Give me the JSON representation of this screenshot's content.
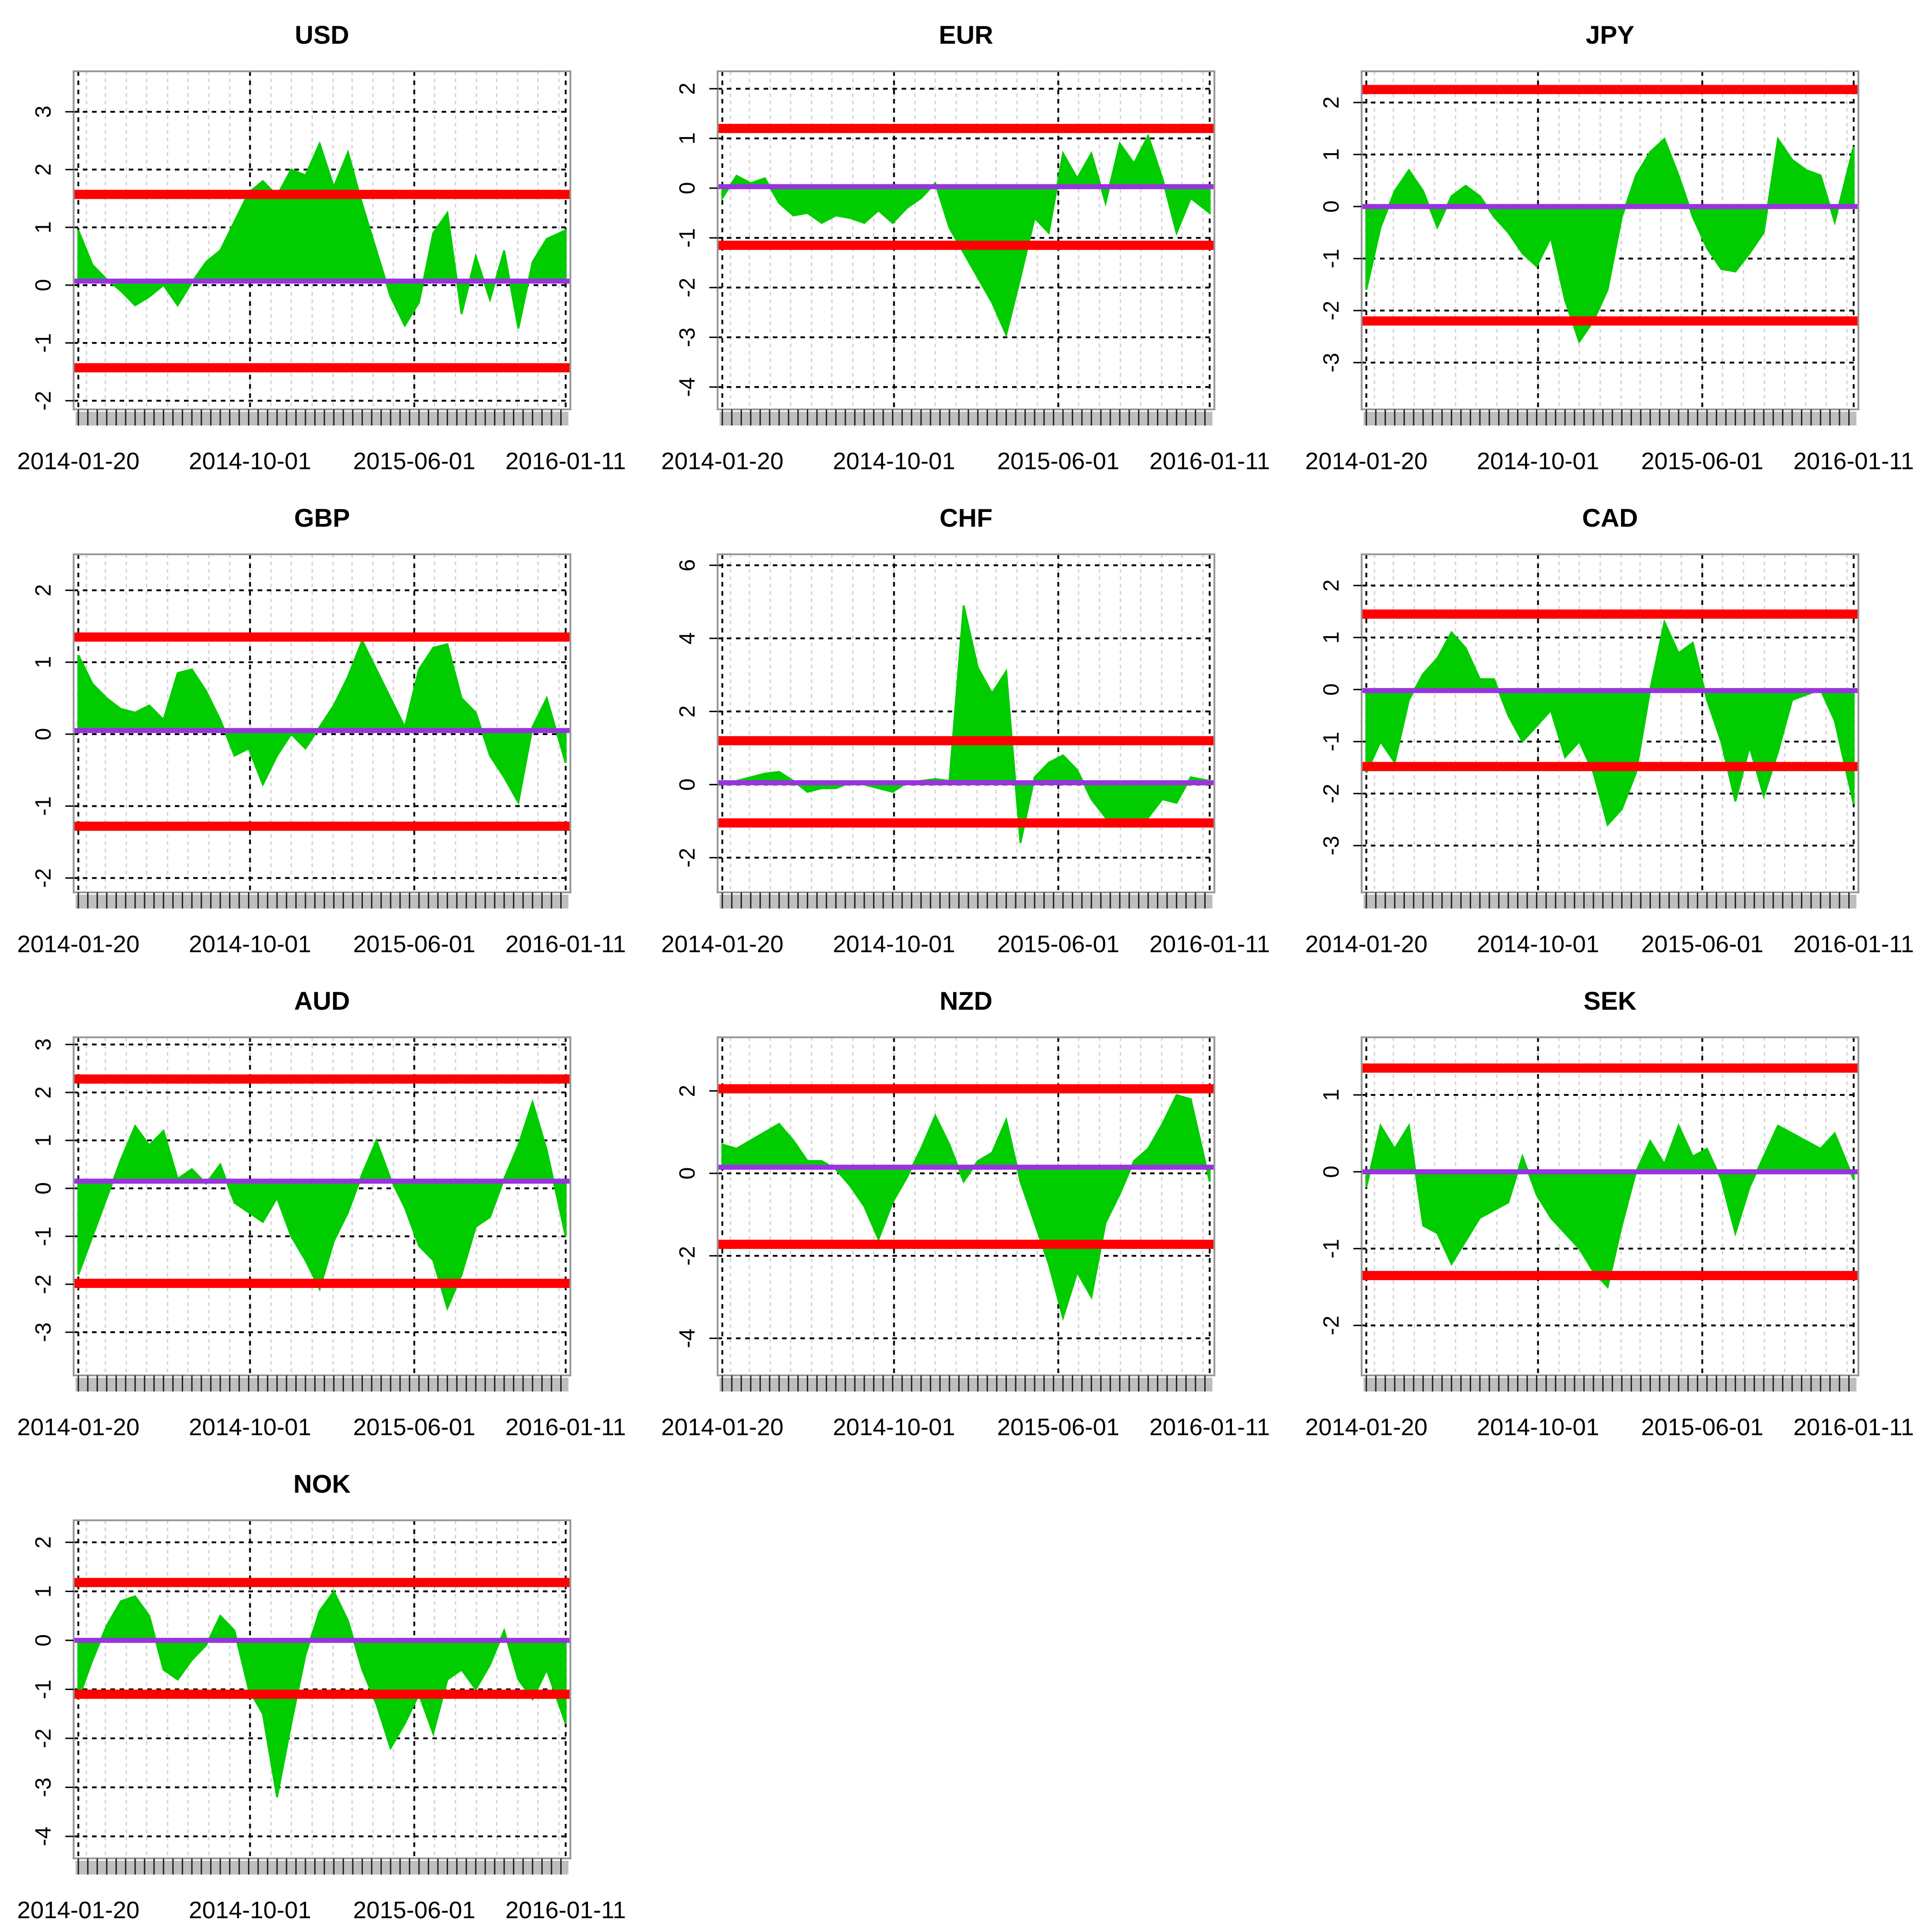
{
  "figure": {
    "background": "#ffffff",
    "colors": {
      "fill": "#00cc00",
      "threshold": "#ff0000",
      "mean": "#9933dd",
      "grid": "#000000",
      "minor_grid": "#d3d3d3",
      "rug": "#bebebe",
      "frame": "#999999"
    }
  },
  "chart_data": [
    {
      "type": "area",
      "title": "USD",
      "xlabel": "",
      "ylabel": "",
      "x_tick_labels": [
        "2014-01-20",
        "2014-10-01",
        "2015-06-01",
        "2016-01-11"
      ],
      "x_ticks": [
        "2014-01-20",
        "2014-10-01",
        "2015-06-01",
        "2016-01-11"
      ],
      "xlim": [
        "2014-01-13",
        "2016-01-18"
      ],
      "y_ticks": [
        -2,
        -1,
        0,
        1,
        2,
        3
      ],
      "ylim": [
        -2.15,
        3.7
      ],
      "grid": true,
      "mean": 0.07,
      "upper_threshold": 1.57,
      "lower_threshold": -1.43,
      "x": [
        "2014-01-20",
        "2014-02-10",
        "2014-03-03",
        "2014-03-24",
        "2014-04-14",
        "2014-05-05",
        "2014-05-26",
        "2014-06-16",
        "2014-07-07",
        "2014-07-28",
        "2014-08-18",
        "2014-09-08",
        "2014-09-29",
        "2014-10-20",
        "2014-11-10",
        "2014-12-01",
        "2014-12-22",
        "2015-01-12",
        "2015-02-02",
        "2015-02-23",
        "2015-03-16",
        "2015-04-06",
        "2015-04-27",
        "2015-05-18",
        "2015-06-08",
        "2015-06-29",
        "2015-07-20",
        "2015-08-10",
        "2015-08-31",
        "2015-09-21",
        "2015-10-12",
        "2015-11-02",
        "2015-11-23",
        "2015-12-14",
        "2016-01-11"
      ],
      "values": [
        0.95,
        0.35,
        0.1,
        -0.1,
        -0.35,
        -0.2,
        0.0,
        -0.35,
        0.05,
        0.4,
        0.6,
        1.1,
        1.6,
        1.8,
        1.55,
        2.0,
        1.9,
        2.45,
        1.7,
        2.3,
        1.4,
        0.6,
        -0.2,
        -0.7,
        -0.3,
        0.9,
        1.25,
        -0.5,
        0.5,
        -0.25,
        0.6,
        -0.75,
        0.4,
        0.8,
        0.95
      ]
    },
    {
      "type": "area",
      "title": "EUR",
      "xlabel": "",
      "ylabel": "",
      "x_tick_labels": [
        "2014-01-20",
        "2014-10-01",
        "2015-06-01",
        "2016-01-11"
      ],
      "x_ticks": [
        "2014-01-20",
        "2014-10-01",
        "2015-06-01",
        "2016-01-11"
      ],
      "xlim": [
        "2014-01-13",
        "2016-01-18"
      ],
      "y_ticks": [
        -4,
        2,
        1,
        0,
        -1,
        -2,
        -3
      ],
      "ylim": [
        -4.45,
        2.35
      ],
      "grid": true,
      "mean": 0.03,
      "upper_threshold": 1.2,
      "lower_threshold": -1.15,
      "x": [
        "2014-01-20",
        "2014-02-10",
        "2014-03-03",
        "2014-03-24",
        "2014-04-14",
        "2014-05-05",
        "2014-05-26",
        "2014-06-16",
        "2014-07-07",
        "2014-07-28",
        "2014-08-18",
        "2014-09-08",
        "2014-09-29",
        "2014-10-20",
        "2014-11-10",
        "2014-12-01",
        "2014-12-22",
        "2015-01-12",
        "2015-02-02",
        "2015-02-23",
        "2015-03-16",
        "2015-04-06",
        "2015-04-27",
        "2015-05-18",
        "2015-06-08",
        "2015-06-29",
        "2015-07-20",
        "2015-08-10",
        "2015-08-31",
        "2015-09-21",
        "2015-10-12",
        "2015-11-02",
        "2015-11-23",
        "2015-12-14",
        "2016-01-11"
      ],
      "values": [
        -0.2,
        0.25,
        0.1,
        0.2,
        -0.3,
        -0.55,
        -0.5,
        -0.7,
        -0.55,
        -0.6,
        -0.7,
        -0.45,
        -0.7,
        -0.4,
        -0.2,
        0.1,
        -0.8,
        -1.3,
        -1.8,
        -2.3,
        -2.95,
        -1.8,
        -0.6,
        -0.9,
        0.7,
        0.2,
        0.7,
        -0.3,
        0.9,
        0.5,
        1.05,
        0.2,
        -0.9,
        -0.2,
        -0.5
      ]
    },
    {
      "type": "area",
      "title": "JPY",
      "xlabel": "",
      "ylabel": "",
      "x_tick_labels": [
        "2014-01-20",
        "2014-10-01",
        "2015-06-01",
        "2016-01-11"
      ],
      "x_ticks": [
        "2014-01-20",
        "2014-10-01",
        "2015-06-01",
        "2016-01-11"
      ],
      "xlim": [
        "2014-01-13",
        "2016-01-18"
      ],
      "y_ticks": [
        -3,
        -2,
        -1,
        0,
        1,
        2
      ],
      "ylim": [
        -3.9,
        2.6
      ],
      "grid": true,
      "mean": 0.0,
      "upper_threshold": 2.25,
      "lower_threshold": -2.2,
      "x": [
        "2014-01-20",
        "2014-02-10",
        "2014-03-03",
        "2014-03-24",
        "2014-04-14",
        "2014-05-05",
        "2014-05-26",
        "2014-06-16",
        "2014-07-07",
        "2014-07-28",
        "2014-08-18",
        "2014-09-08",
        "2014-09-29",
        "2014-10-20",
        "2014-11-10",
        "2014-12-01",
        "2014-12-22",
        "2015-01-12",
        "2015-02-02",
        "2015-02-23",
        "2015-03-16",
        "2015-04-06",
        "2015-04-27",
        "2015-05-18",
        "2015-06-08",
        "2015-06-29",
        "2015-07-20",
        "2015-08-10",
        "2015-08-31",
        "2015-09-21",
        "2015-10-12",
        "2015-11-02",
        "2015-11-23",
        "2015-12-14",
        "2016-01-11"
      ],
      "values": [
        -1.6,
        -0.4,
        0.3,
        0.7,
        0.3,
        -0.4,
        0.2,
        0.4,
        0.2,
        -0.2,
        -0.5,
        -0.9,
        -1.15,
        -0.6,
        -1.8,
        -2.6,
        -2.2,
        -1.6,
        -0.2,
        0.6,
        1.05,
        1.3,
        0.6,
        -0.2,
        -0.8,
        -1.2,
        -1.25,
        -0.9,
        -0.5,
        1.3,
        0.9,
        0.7,
        0.6,
        -0.3,
        1.15
      ]
    },
    {
      "type": "area",
      "title": "GBP",
      "xlabel": "",
      "ylabel": "",
      "x_tick_labels": [
        "2014-01-20",
        "2014-10-01",
        "2015-06-01",
        "2016-01-11"
      ],
      "x_ticks": [
        "2014-01-20",
        "2014-10-01",
        "2015-06-01",
        "2016-01-11"
      ],
      "xlim": [
        "2014-01-13",
        "2016-01-18"
      ],
      "y_ticks": [
        -2,
        -1,
        0,
        1,
        2
      ],
      "ylim": [
        -2.2,
        2.5
      ],
      "grid": true,
      "mean": 0.05,
      "upper_threshold": 1.35,
      "lower_threshold": -1.28,
      "x": [
        "2014-01-20",
        "2014-02-10",
        "2014-03-03",
        "2014-03-24",
        "2014-04-14",
        "2014-05-05",
        "2014-05-26",
        "2014-06-16",
        "2014-07-07",
        "2014-07-28",
        "2014-08-18",
        "2014-09-08",
        "2014-09-29",
        "2014-10-20",
        "2014-11-10",
        "2014-12-01",
        "2014-12-22",
        "2015-01-12",
        "2015-02-02",
        "2015-02-23",
        "2015-03-16",
        "2015-04-06",
        "2015-04-27",
        "2015-05-18",
        "2015-06-08",
        "2015-06-29",
        "2015-07-20",
        "2015-08-10",
        "2015-08-31",
        "2015-09-21",
        "2015-10-12",
        "2015-11-02",
        "2015-11-23",
        "2015-12-14",
        "2016-01-11"
      ],
      "values": [
        1.1,
        0.7,
        0.5,
        0.35,
        0.3,
        0.4,
        0.2,
        0.85,
        0.9,
        0.6,
        0.2,
        -0.3,
        -0.2,
        -0.7,
        -0.3,
        0.0,
        -0.2,
        0.1,
        0.4,
        0.8,
        1.3,
        0.9,
        0.5,
        0.1,
        0.9,
        1.2,
        1.25,
        0.5,
        0.3,
        -0.3,
        -0.6,
        -0.95,
        0.1,
        0.5,
        -0.4
      ]
    },
    {
      "type": "area",
      "title": "CHF",
      "xlabel": "",
      "ylabel": "",
      "x_tick_labels": [
        "2014-01-20",
        "2014-10-01",
        "2015-06-01",
        "2016-01-11"
      ],
      "x_ticks": [
        "2014-01-20",
        "2014-10-01",
        "2015-06-01",
        "2016-01-11"
      ],
      "xlim": [
        "2014-01-13",
        "2016-01-18"
      ],
      "y_ticks": [
        -2,
        0,
        2,
        4,
        6
      ],
      "ylim": [
        -2.95,
        6.3
      ],
      "grid": true,
      "mean": 0.05,
      "upper_threshold": 1.2,
      "lower_threshold": -1.05,
      "x": [
        "2014-01-20",
        "2014-02-10",
        "2014-03-03",
        "2014-03-24",
        "2014-04-14",
        "2014-05-05",
        "2014-05-26",
        "2014-06-16",
        "2014-07-07",
        "2014-07-28",
        "2014-08-18",
        "2014-09-08",
        "2014-09-29",
        "2014-10-20",
        "2014-11-10",
        "2014-12-01",
        "2014-12-22",
        "2015-01-12",
        "2015-02-02",
        "2015-02-23",
        "2015-03-16",
        "2015-04-06",
        "2015-04-27",
        "2015-05-18",
        "2015-06-08",
        "2015-06-29",
        "2015-07-20",
        "2015-08-10",
        "2015-08-31",
        "2015-09-21",
        "2015-10-12",
        "2015-11-02",
        "2015-11-23",
        "2015-12-14",
        "2016-01-11"
      ],
      "values": [
        0.0,
        0.1,
        0.2,
        0.3,
        0.35,
        0.1,
        -0.2,
        -0.1,
        -0.1,
        0.05,
        0.0,
        -0.1,
        -0.2,
        0.05,
        0.1,
        0.15,
        0.1,
        4.9,
        3.2,
        2.5,
        3.1,
        -1.6,
        0.2,
        0.6,
        0.8,
        0.4,
        -0.4,
        -0.9,
        -1.15,
        -1.1,
        -0.9,
        -0.4,
        -0.5,
        0.2,
        0.1
      ]
    },
    {
      "type": "area",
      "title": "CAD",
      "xlabel": "",
      "ylabel": "",
      "x_tick_labels": [
        "2014-01-20",
        "2014-10-01",
        "2015-06-01",
        "2016-01-11"
      ],
      "x_ticks": [
        "2014-01-20",
        "2014-10-01",
        "2015-06-01",
        "2016-01-11"
      ],
      "xlim": [
        "2014-01-13",
        "2016-01-18"
      ],
      "y_ticks": [
        -3,
        -2,
        -1,
        0,
        1,
        2
      ],
      "ylim": [
        -3.9,
        2.6
      ],
      "grid": true,
      "mean": -0.02,
      "upper_threshold": 1.45,
      "lower_threshold": -1.48,
      "x": [
        "2014-01-20",
        "2014-02-10",
        "2014-03-03",
        "2014-03-24",
        "2014-04-14",
        "2014-05-05",
        "2014-05-26",
        "2014-06-16",
        "2014-07-07",
        "2014-07-28",
        "2014-08-18",
        "2014-09-08",
        "2014-09-29",
        "2014-10-20",
        "2014-11-10",
        "2014-12-01",
        "2014-12-22",
        "2015-01-12",
        "2015-02-02",
        "2015-02-23",
        "2015-03-16",
        "2015-04-06",
        "2015-04-27",
        "2015-05-18",
        "2015-06-08",
        "2015-06-29",
        "2015-07-20",
        "2015-08-10",
        "2015-08-31",
        "2015-09-21",
        "2015-10-12",
        "2015-11-02",
        "2015-11-23",
        "2015-12-14",
        "2016-01-11"
      ],
      "values": [
        -1.6,
        -1.0,
        -1.4,
        -0.2,
        0.3,
        0.6,
        1.1,
        0.8,
        0.2,
        0.2,
        -0.5,
        -1.0,
        -0.7,
        -0.4,
        -1.3,
        -1.0,
        -1.6,
        -2.6,
        -2.3,
        -1.6,
        0.0,
        1.3,
        0.7,
        0.9,
        -0.2,
        -1.0,
        -2.15,
        -1.1,
        -2.05,
        -1.2,
        -0.2,
        -0.1,
        0.0,
        -0.6,
        -2.2
      ]
    },
    {
      "type": "area",
      "title": "AUD",
      "xlabel": "",
      "ylabel": "",
      "x_tick_labels": [
        "2014-01-20",
        "2014-10-01",
        "2015-06-01",
        "2016-01-11"
      ],
      "x_ticks": [
        "2014-01-20",
        "2014-10-01",
        "2015-06-01",
        "2016-01-11"
      ],
      "xlim": [
        "2014-01-13",
        "2016-01-18"
      ],
      "y_ticks": [
        -3,
        -2,
        -1,
        0,
        1,
        2,
        3
      ],
      "ylim": [
        -3.9,
        3.15
      ],
      "grid": true,
      "mean": 0.15,
      "upper_threshold": 2.28,
      "lower_threshold": -1.98,
      "x": [
        "2014-01-20",
        "2014-02-10",
        "2014-03-03",
        "2014-03-24",
        "2014-04-14",
        "2014-05-05",
        "2014-05-26",
        "2014-06-16",
        "2014-07-07",
        "2014-07-28",
        "2014-08-18",
        "2014-09-08",
        "2014-09-29",
        "2014-10-20",
        "2014-11-10",
        "2014-12-01",
        "2014-12-22",
        "2015-01-12",
        "2015-02-02",
        "2015-02-23",
        "2015-03-16",
        "2015-04-06",
        "2015-04-27",
        "2015-05-18",
        "2015-06-08",
        "2015-06-29",
        "2015-07-20",
        "2015-08-10",
        "2015-08-31",
        "2015-09-21",
        "2015-10-12",
        "2015-11-02",
        "2015-11-23",
        "2015-12-14",
        "2016-01-11"
      ],
      "values": [
        -1.8,
        -1.0,
        -0.2,
        0.6,
        1.3,
        0.9,
        1.2,
        0.2,
        0.4,
        0.1,
        0.5,
        -0.3,
        -0.5,
        -0.7,
        -0.2,
        -1.0,
        -1.5,
        -2.1,
        -1.1,
        -0.5,
        0.3,
        1.0,
        0.2,
        -0.4,
        -1.2,
        -1.5,
        -2.5,
        -1.8,
        -0.8,
        -0.6,
        0.2,
        0.9,
        1.8,
        0.8,
        -1.0
      ]
    },
    {
      "type": "area",
      "title": "NZD",
      "xlabel": "",
      "ylabel": "",
      "x_tick_labels": [
        "2014-01-20",
        "2014-10-01",
        "2015-06-01",
        "2016-01-11"
      ],
      "x_ticks": [
        "2014-01-20",
        "2014-10-01",
        "2015-06-01",
        "2016-01-11"
      ],
      "xlim": [
        "2014-01-13",
        "2016-01-18"
      ],
      "y_ticks": [
        -4,
        -2,
        0,
        2
      ],
      "ylim": [
        -4.9,
        3.3
      ],
      "grid": true,
      "mean": 0.15,
      "upper_threshold": 2.05,
      "lower_threshold": -1.72,
      "x": [
        "2014-01-20",
        "2014-02-10",
        "2014-03-03",
        "2014-03-24",
        "2014-04-14",
        "2014-05-05",
        "2014-05-26",
        "2014-06-16",
        "2014-07-07",
        "2014-07-28",
        "2014-08-18",
        "2014-09-08",
        "2014-09-29",
        "2014-10-20",
        "2014-11-10",
        "2014-12-01",
        "2014-12-22",
        "2015-01-12",
        "2015-02-02",
        "2015-02-23",
        "2015-03-16",
        "2015-04-06",
        "2015-04-27",
        "2015-05-18",
        "2015-06-08",
        "2015-06-29",
        "2015-07-20",
        "2015-08-10",
        "2015-08-31",
        "2015-09-21",
        "2015-10-12",
        "2015-11-02",
        "2015-11-23",
        "2015-12-14",
        "2016-01-11"
      ],
      "values": [
        0.7,
        0.6,
        0.8,
        1.0,
        1.2,
        0.8,
        0.3,
        0.3,
        0.1,
        -0.3,
        -0.8,
        -1.6,
        -0.7,
        -0.1,
        0.6,
        1.4,
        0.7,
        -0.2,
        0.3,
        0.5,
        1.3,
        -0.2,
        -1.2,
        -2.2,
        -3.5,
        -2.4,
        -3.0,
        -1.2,
        -0.5,
        0.3,
        0.6,
        1.2,
        1.9,
        1.8,
        -0.2
      ]
    },
    {
      "type": "area",
      "title": "SEK",
      "xlabel": "",
      "ylabel": "",
      "x_tick_labels": [
        "2014-01-20",
        "2014-10-01",
        "2015-06-01",
        "2016-01-11"
      ],
      "x_ticks": [
        "2014-01-20",
        "2014-10-01",
        "2015-06-01",
        "2016-01-11"
      ],
      "xlim": [
        "2014-01-13",
        "2016-01-18"
      ],
      "y_ticks": [
        -2,
        -1,
        0,
        1
      ],
      "ylim": [
        -2.65,
        1.75
      ],
      "grid": true,
      "mean": 0.0,
      "upper_threshold": 1.35,
      "lower_threshold": -1.35,
      "x": [
        "2014-01-20",
        "2014-02-10",
        "2014-03-03",
        "2014-03-24",
        "2014-04-14",
        "2014-05-05",
        "2014-05-26",
        "2014-06-16",
        "2014-07-07",
        "2014-07-28",
        "2014-08-18",
        "2014-09-08",
        "2014-09-29",
        "2014-10-20",
        "2014-11-10",
        "2014-12-01",
        "2014-12-22",
        "2015-01-12",
        "2015-02-02",
        "2015-02-23",
        "2015-03-16",
        "2015-04-06",
        "2015-04-27",
        "2015-05-18",
        "2015-06-08",
        "2015-06-29",
        "2015-07-20",
        "2015-08-10",
        "2015-08-31",
        "2015-09-21",
        "2015-10-12",
        "2015-11-02",
        "2015-11-23",
        "2015-12-14",
        "2016-01-11"
      ],
      "values": [
        -0.2,
        0.6,
        0.3,
        0.6,
        -0.7,
        -0.8,
        -1.2,
        -0.9,
        -0.6,
        -0.5,
        -0.4,
        0.2,
        -0.3,
        -0.6,
        -0.8,
        -1.0,
        -1.3,
        -1.5,
        -0.7,
        0.0,
        0.4,
        0.1,
        0.6,
        0.2,
        0.3,
        -0.1,
        -0.8,
        -0.2,
        0.2,
        0.6,
        0.5,
        0.4,
        0.3,
        0.5,
        -0.1
      ]
    },
    {
      "type": "area",
      "title": "NOK",
      "xlabel": "",
      "ylabel": "",
      "x_tick_labels": [
        "2014-01-20",
        "2014-10-01",
        "2015-06-01",
        "2016-01-11"
      ],
      "x_ticks": [
        "2014-01-20",
        "2014-10-01",
        "2015-06-01",
        "2016-01-11"
      ],
      "xlim": [
        "2014-01-13",
        "2016-01-18"
      ],
      "y_ticks": [
        -4,
        -3,
        -2,
        -1,
        0,
        1,
        2
      ],
      "ylim": [
        -4.45,
        2.45
      ],
      "grid": true,
      "mean": 0.0,
      "upper_threshold": 1.18,
      "lower_threshold": -1.1,
      "x": [
        "2014-01-20",
        "2014-02-10",
        "2014-03-03",
        "2014-03-24",
        "2014-04-14",
        "2014-05-05",
        "2014-05-26",
        "2014-06-16",
        "2014-07-07",
        "2014-07-28",
        "2014-08-18",
        "2014-09-08",
        "2014-09-29",
        "2014-10-20",
        "2014-11-10",
        "2014-12-01",
        "2014-12-22",
        "2015-01-12",
        "2015-02-02",
        "2015-02-23",
        "2015-03-16",
        "2015-04-06",
        "2015-04-27",
        "2015-05-18",
        "2015-06-08",
        "2015-06-29",
        "2015-07-20",
        "2015-08-10",
        "2015-08-31",
        "2015-09-21",
        "2015-10-12",
        "2015-11-02",
        "2015-11-23",
        "2015-12-14",
        "2016-01-11"
      ],
      "values": [
        -1.2,
        -0.4,
        0.3,
        0.8,
        0.9,
        0.5,
        -0.6,
        -0.8,
        -0.4,
        -0.1,
        0.5,
        0.2,
        -1.0,
        -1.5,
        -3.2,
        -1.7,
        -0.3,
        0.6,
        1.0,
        0.4,
        -0.6,
        -1.3,
        -2.2,
        -1.7,
        -1.1,
        -1.9,
        -0.8,
        -0.6,
        -1.0,
        -0.5,
        0.2,
        -0.8,
        -1.2,
        -0.6,
        -1.7
      ]
    }
  ]
}
